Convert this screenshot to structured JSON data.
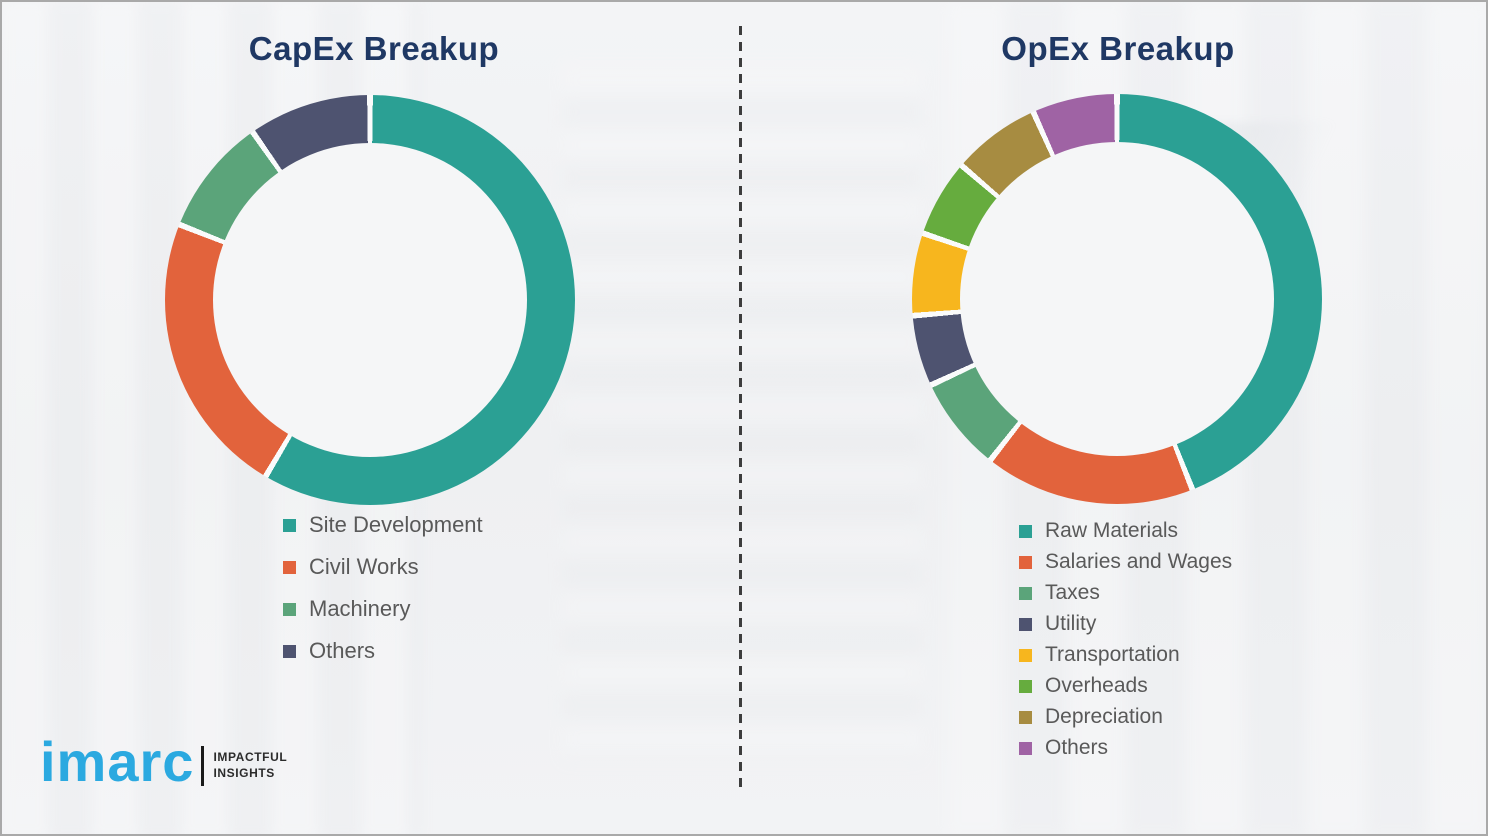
{
  "page": {
    "background_color": "#F0F1F3",
    "border_color": "#A9A9A9",
    "divider_color": "#3D3D3D",
    "title_color": "#1F3864",
    "legend_text_color": "#595959"
  },
  "branding": {
    "logo_text": "imarc",
    "logo_color": "#2BA9E0",
    "tagline_line1": "IMPACTFUL",
    "tagline_line2": "INSIGHTS",
    "tagline_color": "#2B2B2B"
  },
  "chart_data": [
    {
      "type": "pie",
      "donut": true,
      "title": "CapEx Breakup",
      "start_angle_deg": 0,
      "direction": "clockwise",
      "legend_position": "below-left",
      "categories": [
        "Site Development",
        "Civil Works",
        "Machinery",
        "Others"
      ],
      "values": [
        58.5,
        22.5,
        9.3,
        9.7
      ],
      "colors": [
        "#2BA094",
        "#E2633C",
        "#5BA47A",
        "#4E5370"
      ],
      "gap_color": "#FAFBFB",
      "hole_color": "#F5F6F7"
    },
    {
      "type": "pie",
      "donut": true,
      "title": "OpEx Breakup",
      "start_angle_deg": 0,
      "direction": "clockwise",
      "legend_position": "below-left",
      "categories": [
        "Raw Materials",
        "Salaries and Wages",
        "Taxes",
        "Utility",
        "Transportation",
        "Overheads",
        "Depreciation",
        "Others"
      ],
      "values": [
        44,
        16.6,
        7.5,
        5.6,
        6.5,
        6.1,
        7,
        6.7
      ],
      "colors": [
        "#2BA094",
        "#E2633C",
        "#5BA47A",
        "#4E5370",
        "#F7B61E",
        "#66AC3E",
        "#A78C41",
        "#9F63A4"
      ],
      "gap_color": "#FAFBFB",
      "hole_color": "#F5F6F7"
    }
  ]
}
